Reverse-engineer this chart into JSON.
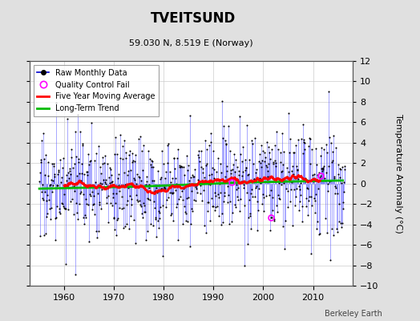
{
  "title": "TVEITSUND",
  "subtitle": "59.030 N, 8.519 E (Norway)",
  "ylabel": "Temperature Anomaly (°C)",
  "ylim": [
    -10,
    12
  ],
  "xlim": [
    1953,
    2018
  ],
  "yticks": [
    -10,
    -8,
    -6,
    -4,
    -2,
    0,
    2,
    4,
    6,
    8,
    10,
    12
  ],
  "xticks": [
    1960,
    1970,
    1980,
    1990,
    2000,
    2010
  ],
  "bg_color": "#e0e0e0",
  "plot_bg_color": "#ffffff",
  "stem_color": "#6666ff",
  "dot_color": "#000000",
  "line_color": "#0000cc",
  "ma_color": "#ff0000",
  "trend_color": "#00bb00",
  "qc_color": "#ff00ff",
  "watermark": "Berkeley Earth",
  "seed": 17
}
